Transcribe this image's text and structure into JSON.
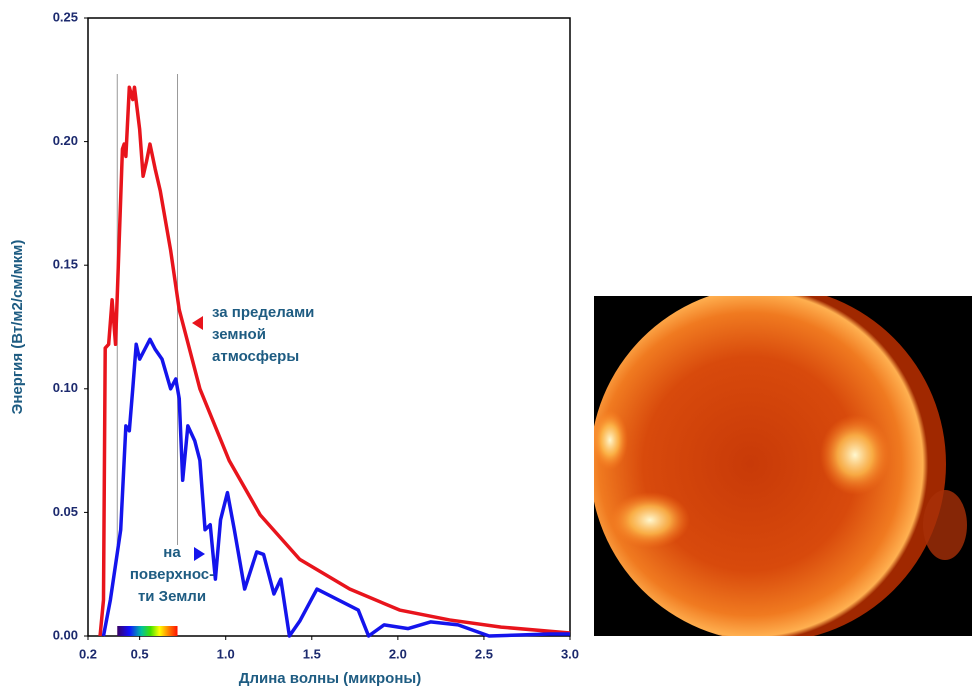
{
  "chart_data": {
    "type": "line",
    "x_label": "Длина волны (микроны)",
    "y_label": "Энергия (Вт/м2/см/мкм)",
    "xlim": [
      0.2,
      3.0
    ],
    "ylim": [
      0,
      0.25
    ],
    "xticks": [
      0.2,
      0.5,
      {
        "value": 1.0,
        "label": "1.0"
      },
      1.5,
      {
        "value": 2.0,
        "label": "2.0"
      },
      2.5,
      {
        "value": 3.0,
        "label": "3.0"
      }
    ],
    "yticks": [
      {
        "value": 0,
        "label": "0.00"
      },
      0.05,
      {
        "value": 0.1,
        "label": "0.10"
      },
      0.15,
      {
        "value": 0.2,
        "label": "0.20"
      },
      0.25
    ],
    "series": [
      {
        "name": "за пределами земной атмосферы",
        "name_lines": [
          "за пределами",
          "земной",
          "атмосферы"
        ],
        "color": "#e8141c",
        "x": [
          0.27,
          0.29,
          0.3,
          0.32,
          0.34,
          0.36,
          0.4,
          0.41,
          0.42,
          0.44,
          0.46,
          0.47,
          0.5,
          0.52,
          0.54,
          0.56,
          0.59,
          0.62,
          0.68,
          0.73,
          0.85,
          1.02,
          1.2,
          1.43,
          1.72,
          2.01,
          2.3,
          2.6,
          3.0
        ],
        "values": [
          0,
          0.0146,
          0.1165,
          0.118,
          0.136,
          0.118,
          0.197,
          0.199,
          0.194,
          0.222,
          0.217,
          0.222,
          0.205,
          0.186,
          0.192,
          0.199,
          0.189,
          0.18,
          0.156,
          0.132,
          0.1,
          0.071,
          0.049,
          0.031,
          0.019,
          0.0105,
          0.0065,
          0.0036,
          0.0012
        ]
      },
      {
        "name": "на поверхности Земли",
        "name_lines": [
          "на",
          "поверхнос-",
          "ти Земли"
        ],
        "color": "#1414ec",
        "x": [
          0.29,
          0.33,
          0.39,
          0.42,
          0.44,
          0.46,
          0.48,
          0.5,
          0.53,
          0.56,
          0.59,
          0.63,
          0.68,
          0.71,
          0.73,
          0.75,
          0.78,
          0.82,
          0.85,
          0.88,
          0.91,
          0.94,
          0.97,
          1.01,
          1.05,
          1.11,
          1.18,
          1.22,
          1.28,
          1.32,
          1.37,
          1.43,
          1.53,
          1.77,
          1.83,
          1.92,
          2.06,
          2.19,
          2.35,
          2.53,
          2.88,
          3.0
        ],
        "values": [
          0,
          0.0146,
          0.043,
          0.085,
          0.083,
          0.1,
          0.118,
          0.112,
          0.116,
          0.12,
          0.116,
          0.112,
          0.1,
          0.104,
          0.096,
          0.063,
          0.085,
          0.079,
          0.071,
          0.043,
          0.045,
          0.023,
          0.047,
          0.058,
          0.043,
          0.019,
          0.034,
          0.033,
          0.017,
          0.023,
          0,
          0.006,
          0.019,
          0.0105,
          0,
          0.0045,
          0.003,
          0.0057,
          0.0045,
          0,
          0.0008,
          0.0008
        ]
      }
    ],
    "visible_range_x": [
      0.37,
      0.72
    ]
  }
}
